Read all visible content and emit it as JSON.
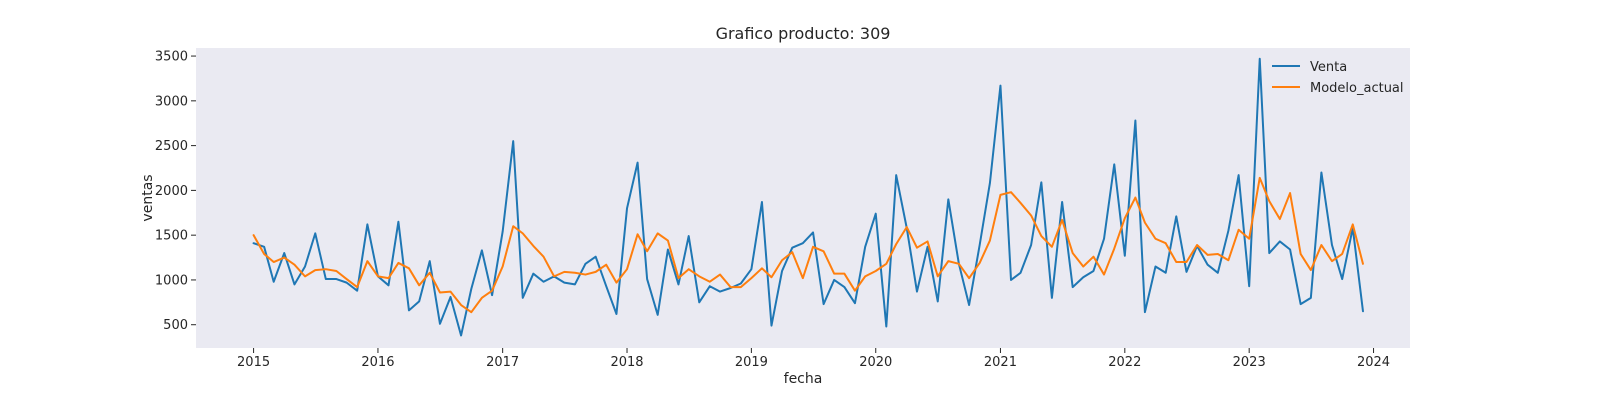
{
  "chart_data": {
    "type": "line",
    "title": "Grafico producto: 309",
    "xlabel": "fecha",
    "ylabel": "ventas",
    "xlim": [
      "2014-07-16",
      "2024-04-17"
    ],
    "ylim": [
      240,
      3590
    ],
    "x_ticks": [
      "2015-01-01",
      "2016-01-01",
      "2017-01-01",
      "2018-01-01",
      "2019-01-01",
      "2020-01-01",
      "2021-01-01",
      "2022-01-01",
      "2023-01-01",
      "2024-01-01"
    ],
    "x_tick_labels": [
      "2015",
      "2016",
      "2017",
      "2018",
      "2019",
      "2020",
      "2021",
      "2022",
      "2023",
      "2024"
    ],
    "y_ticks": [
      500,
      1000,
      1500,
      2000,
      2500,
      3000,
      3500
    ],
    "y_tick_labels": [
      "500",
      "1000",
      "1500",
      "2000",
      "2500",
      "3000",
      "3500"
    ],
    "grid": false,
    "legend_position": "top-right",
    "x": [
      "2015-01",
      "2015-02",
      "2015-03",
      "2015-04",
      "2015-05",
      "2015-06",
      "2015-07",
      "2015-08",
      "2015-09",
      "2015-10",
      "2015-11",
      "2015-12",
      "2016-01",
      "2016-02",
      "2016-03",
      "2016-04",
      "2016-05",
      "2016-06",
      "2016-07",
      "2016-08",
      "2016-09",
      "2016-10",
      "2016-11",
      "2016-12",
      "2017-01",
      "2017-02",
      "2017-03",
      "2017-04",
      "2017-05",
      "2017-06",
      "2017-07",
      "2017-08",
      "2017-09",
      "2017-10",
      "2017-11",
      "2017-12",
      "2018-01",
      "2018-02",
      "2018-03",
      "2018-04",
      "2018-05",
      "2018-06",
      "2018-07",
      "2018-08",
      "2018-09",
      "2018-10",
      "2018-11",
      "2018-12",
      "2019-01",
      "2019-02",
      "2019-03",
      "2019-04",
      "2019-05",
      "2019-06",
      "2019-07",
      "2019-08",
      "2019-09",
      "2019-10",
      "2019-11",
      "2019-12",
      "2020-01",
      "2020-02",
      "2020-03",
      "2020-04",
      "2020-05",
      "2020-06",
      "2020-07",
      "2020-08",
      "2020-09",
      "2020-10",
      "2020-11",
      "2020-12",
      "2021-01",
      "2021-02",
      "2021-03",
      "2021-04",
      "2021-05",
      "2021-06",
      "2021-07",
      "2021-08",
      "2021-09",
      "2021-10",
      "2021-11",
      "2021-12",
      "2022-01",
      "2022-02",
      "2022-03",
      "2022-04",
      "2022-05",
      "2022-06",
      "2022-07",
      "2022-08",
      "2022-09",
      "2022-10",
      "2022-11",
      "2022-12",
      "2023-01",
      "2023-02",
      "2023-03",
      "2023-04",
      "2023-05",
      "2023-06",
      "2023-07",
      "2023-08",
      "2023-09",
      "2023-10",
      "2023-11",
      "2023-12"
    ],
    "series": [
      {
        "name": "Venta",
        "color": "#1f77b4",
        "values": [
          1410,
          1370,
          980,
          1300,
          950,
          1150,
          1520,
          1010,
          1010,
          970,
          880,
          1620,
          1040,
          940,
          1650,
          660,
          760,
          1210,
          510,
          810,
          380,
          900,
          1330,
          830,
          1540,
          2550,
          800,
          1070,
          980,
          1040,
          970,
          950,
          1180,
          1260,
          930,
          620,
          1800,
          2310,
          1010,
          610,
          1340,
          950,
          1490,
          750,
          930,
          870,
          910,
          960,
          1120,
          1870,
          490,
          1100,
          1360,
          1410,
          1530,
          730,
          1000,
          920,
          740,
          1370,
          1740,
          480,
          2170,
          1580,
          870,
          1370,
          760,
          1900,
          1180,
          720,
          1390,
          2080,
          3170,
          1000,
          1080,
          1390,
          2090,
          800,
          1870,
          920,
          1030,
          1100,
          1460,
          2290,
          1270,
          2780,
          640,
          1150,
          1080,
          1710,
          1090,
          1380,
          1170,
          1080,
          1550,
          2170,
          930,
          3470,
          1300,
          1430,
          1340,
          730,
          800,
          2200,
          1390,
          1010,
          1580,
          650
        ]
      },
      {
        "name": "Modelo_actual",
        "color": "#ff7f0e",
        "values": [
          1500,
          1290,
          1200,
          1250,
          1170,
          1040,
          1110,
          1120,
          1100,
          1010,
          920,
          1210,
          1040,
          1020,
          1190,
          1130,
          940,
          1080,
          860,
          870,
          720,
          640,
          800,
          880,
          1150,
          1600,
          1520,
          1380,
          1260,
          1040,
          1090,
          1080,
          1060,
          1090,
          1170,
          970,
          1120,
          1510,
          1320,
          1520,
          1440,
          1020,
          1120,
          1040,
          980,
          1060,
          920,
          920,
          1020,
          1130,
          1030,
          1220,
          1310,
          1020,
          1370,
          1320,
          1070,
          1070,
          880,
          1040,
          1100,
          1180,
          1400,
          1590,
          1360,
          1430,
          1040,
          1210,
          1180,
          1020,
          1190,
          1440,
          1950,
          1980,
          1860,
          1720,
          1490,
          1370,
          1670,
          1300,
          1150,
          1260,
          1060,
          1350,
          1690,
          1920,
          1640,
          1460,
          1410,
          1200,
          1200,
          1390,
          1280,
          1290,
          1220,
          1560,
          1460,
          2140,
          1880,
          1680,
          1970,
          1290,
          1110,
          1390,
          1210,
          1290,
          1620,
          1180
        ]
      }
    ]
  }
}
